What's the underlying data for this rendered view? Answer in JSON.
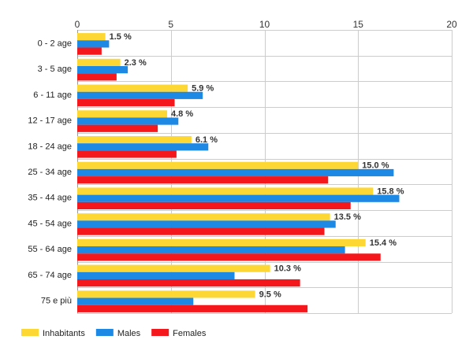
{
  "chart_data": {
    "type": "bar",
    "orientation": "horizontal",
    "categories": [
      "0 - 2 age",
      "3 - 5 age",
      "6 - 11 age",
      "12 - 17 age",
      "18 - 24 age",
      "25 - 34 age",
      "35 - 44 age",
      "45 - 54 age",
      "55 - 64 age",
      "65 - 74 age",
      "75 e più"
    ],
    "series": [
      {
        "name": "Inhabitants",
        "color": "#FDD835",
        "values": [
          1.5,
          2.3,
          5.9,
          4.8,
          6.1,
          15.0,
          15.8,
          13.5,
          15.4,
          10.3,
          9.5
        ]
      },
      {
        "name": "Males",
        "color": "#1E88E5",
        "values": [
          1.7,
          2.7,
          6.7,
          5.4,
          7.0,
          16.9,
          17.2,
          13.8,
          14.3,
          8.4,
          6.2
        ]
      },
      {
        "name": "Females",
        "color": "#F4171B",
        "values": [
          1.3,
          2.1,
          5.2,
          4.3,
          5.3,
          13.4,
          14.6,
          13.2,
          16.2,
          11.9,
          12.3
        ]
      }
    ],
    "data_labels": [
      "1.5 %",
      "2.3 %",
      "5.9 %",
      "4.8 %",
      "6.1 %",
      "15.0 %",
      "15.8 %",
      "13.5 %",
      "15.4 %",
      "10.3 %",
      "9.5 %"
    ],
    "x_ticks": [
      0,
      5,
      10,
      15,
      20
    ],
    "xlim": [
      0,
      20
    ],
    "x_axis_position": "top",
    "grid": true,
    "legend_position": "bottom-left"
  }
}
